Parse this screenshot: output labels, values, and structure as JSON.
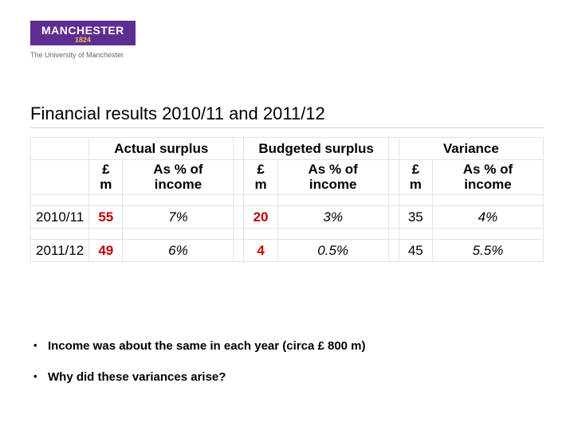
{
  "logo": {
    "main": "MANCHESTER",
    "year": "1824",
    "sub": "The University of Manchester"
  },
  "title": "Financial results 2010/11 and 2011/12",
  "colors": {
    "brand": "#5e2d91",
    "accent_year": "#f2c14e",
    "red": "#c00000",
    "border": "#e2e2e2",
    "title_underline": "#d0d0d0"
  },
  "table": {
    "group_headers": [
      "Actual surplus",
      "Budgeted surplus",
      "Variance"
    ],
    "sub_headers": {
      "money": "£ m",
      "pct": "As % of income"
    },
    "rows": [
      {
        "label": "2010/11",
        "actual_money": "55",
        "actual_pct": "7%",
        "budget_money": "20",
        "budget_pct": "3%",
        "var_money": "35",
        "var_pct": "4%"
      },
      {
        "label": "2011/12",
        "actual_money": "49",
        "actual_pct": "6%",
        "budget_money": "4",
        "budget_pct": "0.5%",
        "var_money": "45",
        "var_pct": "5.5%"
      }
    ],
    "styling": {
      "red_cells": [
        "actual_money",
        "budget_money"
      ],
      "italic_cells": [
        "actual_pct",
        "budget_pct",
        "var_pct"
      ],
      "header_fontsize": 18,
      "cell_fontsize": 17
    }
  },
  "bullets": [
    "Income was about the same in each year (circa £ 800 m)",
    "Why did these variances arise?"
  ]
}
